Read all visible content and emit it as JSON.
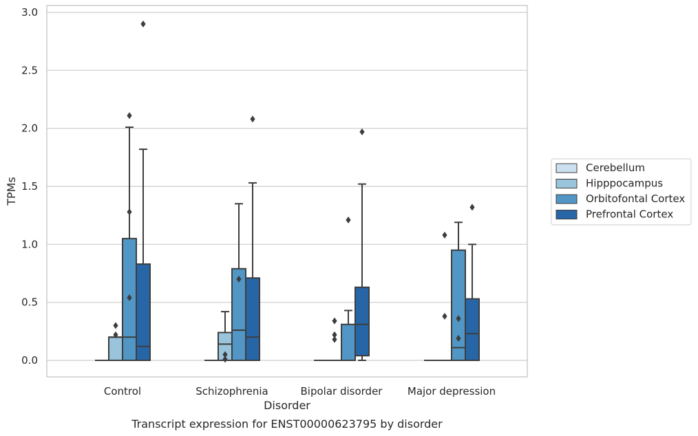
{
  "chart_data": {
    "type": "box",
    "title": "",
    "caption": "Transcript expression for ENST00000623795 by disorder",
    "xlabel": "Disorder",
    "ylabel": "TPMs",
    "ylim": [
      -0.14,
      3.05
    ],
    "yticks": [
      "0.0",
      "0.5",
      "1.0",
      "1.5",
      "2.0",
      "2.5",
      "3.0"
    ],
    "grid": "horizontal",
    "legend_position": "right",
    "categories": [
      "Control",
      "Schizophrenia",
      "Bipolar disorder",
      "Major depression"
    ],
    "series": [
      {
        "name": "Cerebellum",
        "color": "#cde0ef",
        "boxes": [
          {
            "q1": 0,
            "median": 0,
            "q3": 0,
            "whislo": 0,
            "whishi": 0,
            "fliers": []
          },
          {
            "q1": 0,
            "median": 0,
            "q3": 0,
            "whislo": 0,
            "whishi": 0,
            "fliers": []
          },
          {
            "q1": 0,
            "median": 0,
            "q3": 0,
            "whislo": 0,
            "whishi": 0,
            "fliers": []
          },
          {
            "q1": 0,
            "median": 0,
            "q3": 0,
            "whislo": 0,
            "whishi": 0,
            "fliers": []
          }
        ]
      },
      {
        "name": "Hipppocampus",
        "color": "#9ac3dc",
        "boxes": [
          {
            "q1": 0,
            "median": 0.2,
            "q3": 0.2,
            "whislo": 0,
            "whishi": 0.2,
            "fliers": [
              0.3,
              0.22
            ]
          },
          {
            "q1": 0,
            "median": 0.14,
            "q3": 0.24,
            "whislo": 0,
            "whishi": 0.42,
            "fliers": [
              0.05,
              0.01
            ]
          },
          {
            "q1": 0,
            "median": 0,
            "q3": 0,
            "whislo": 0,
            "whishi": 0,
            "fliers": [
              0.34,
              0.22,
              0.18
            ]
          },
          {
            "q1": 0,
            "median": 0,
            "q3": 0,
            "whislo": 0,
            "whishi": 0,
            "fliers": [
              1.08,
              0.38
            ]
          }
        ]
      },
      {
        "name": "Orbitofontal Cortex",
        "color": "#5196c5",
        "boxes": [
          {
            "q1": 0,
            "median": 0.2,
            "q3": 1.05,
            "whislo": 0,
            "whishi": 2.01,
            "fliers": [
              2.11,
              1.28,
              0.54
            ]
          },
          {
            "q1": 0,
            "median": 0.26,
            "q3": 0.79,
            "whislo": 0,
            "whishi": 1.35,
            "fliers": [
              0.7
            ]
          },
          {
            "q1": 0,
            "median": 0,
            "q3": 0.31,
            "whislo": 0,
            "whishi": 0.43,
            "fliers": [
              1.21
            ]
          },
          {
            "q1": 0,
            "median": 0.11,
            "q3": 0.95,
            "whislo": 0,
            "whishi": 1.19,
            "fliers": [
              0.36,
              0.19
            ]
          }
        ]
      },
      {
        "name": "Prefrontal Cortex",
        "color": "#2766a6",
        "boxes": [
          {
            "q1": 0,
            "median": 0.12,
            "q3": 0.83,
            "whislo": 0,
            "whishi": 1.82,
            "fliers": [
              2.9
            ]
          },
          {
            "q1": 0,
            "median": 0.2,
            "q3": 0.71,
            "whislo": 0,
            "whishi": 1.53,
            "fliers": [
              2.08
            ]
          },
          {
            "q1": 0.04,
            "median": 0.31,
            "q3": 0.63,
            "whislo": 0,
            "whishi": 1.52,
            "fliers": [
              1.97
            ]
          },
          {
            "q1": 0,
            "median": 0.23,
            "q3": 0.53,
            "whislo": 0,
            "whishi": 1.0,
            "fliers": [
              1.32
            ]
          }
        ]
      }
    ]
  }
}
